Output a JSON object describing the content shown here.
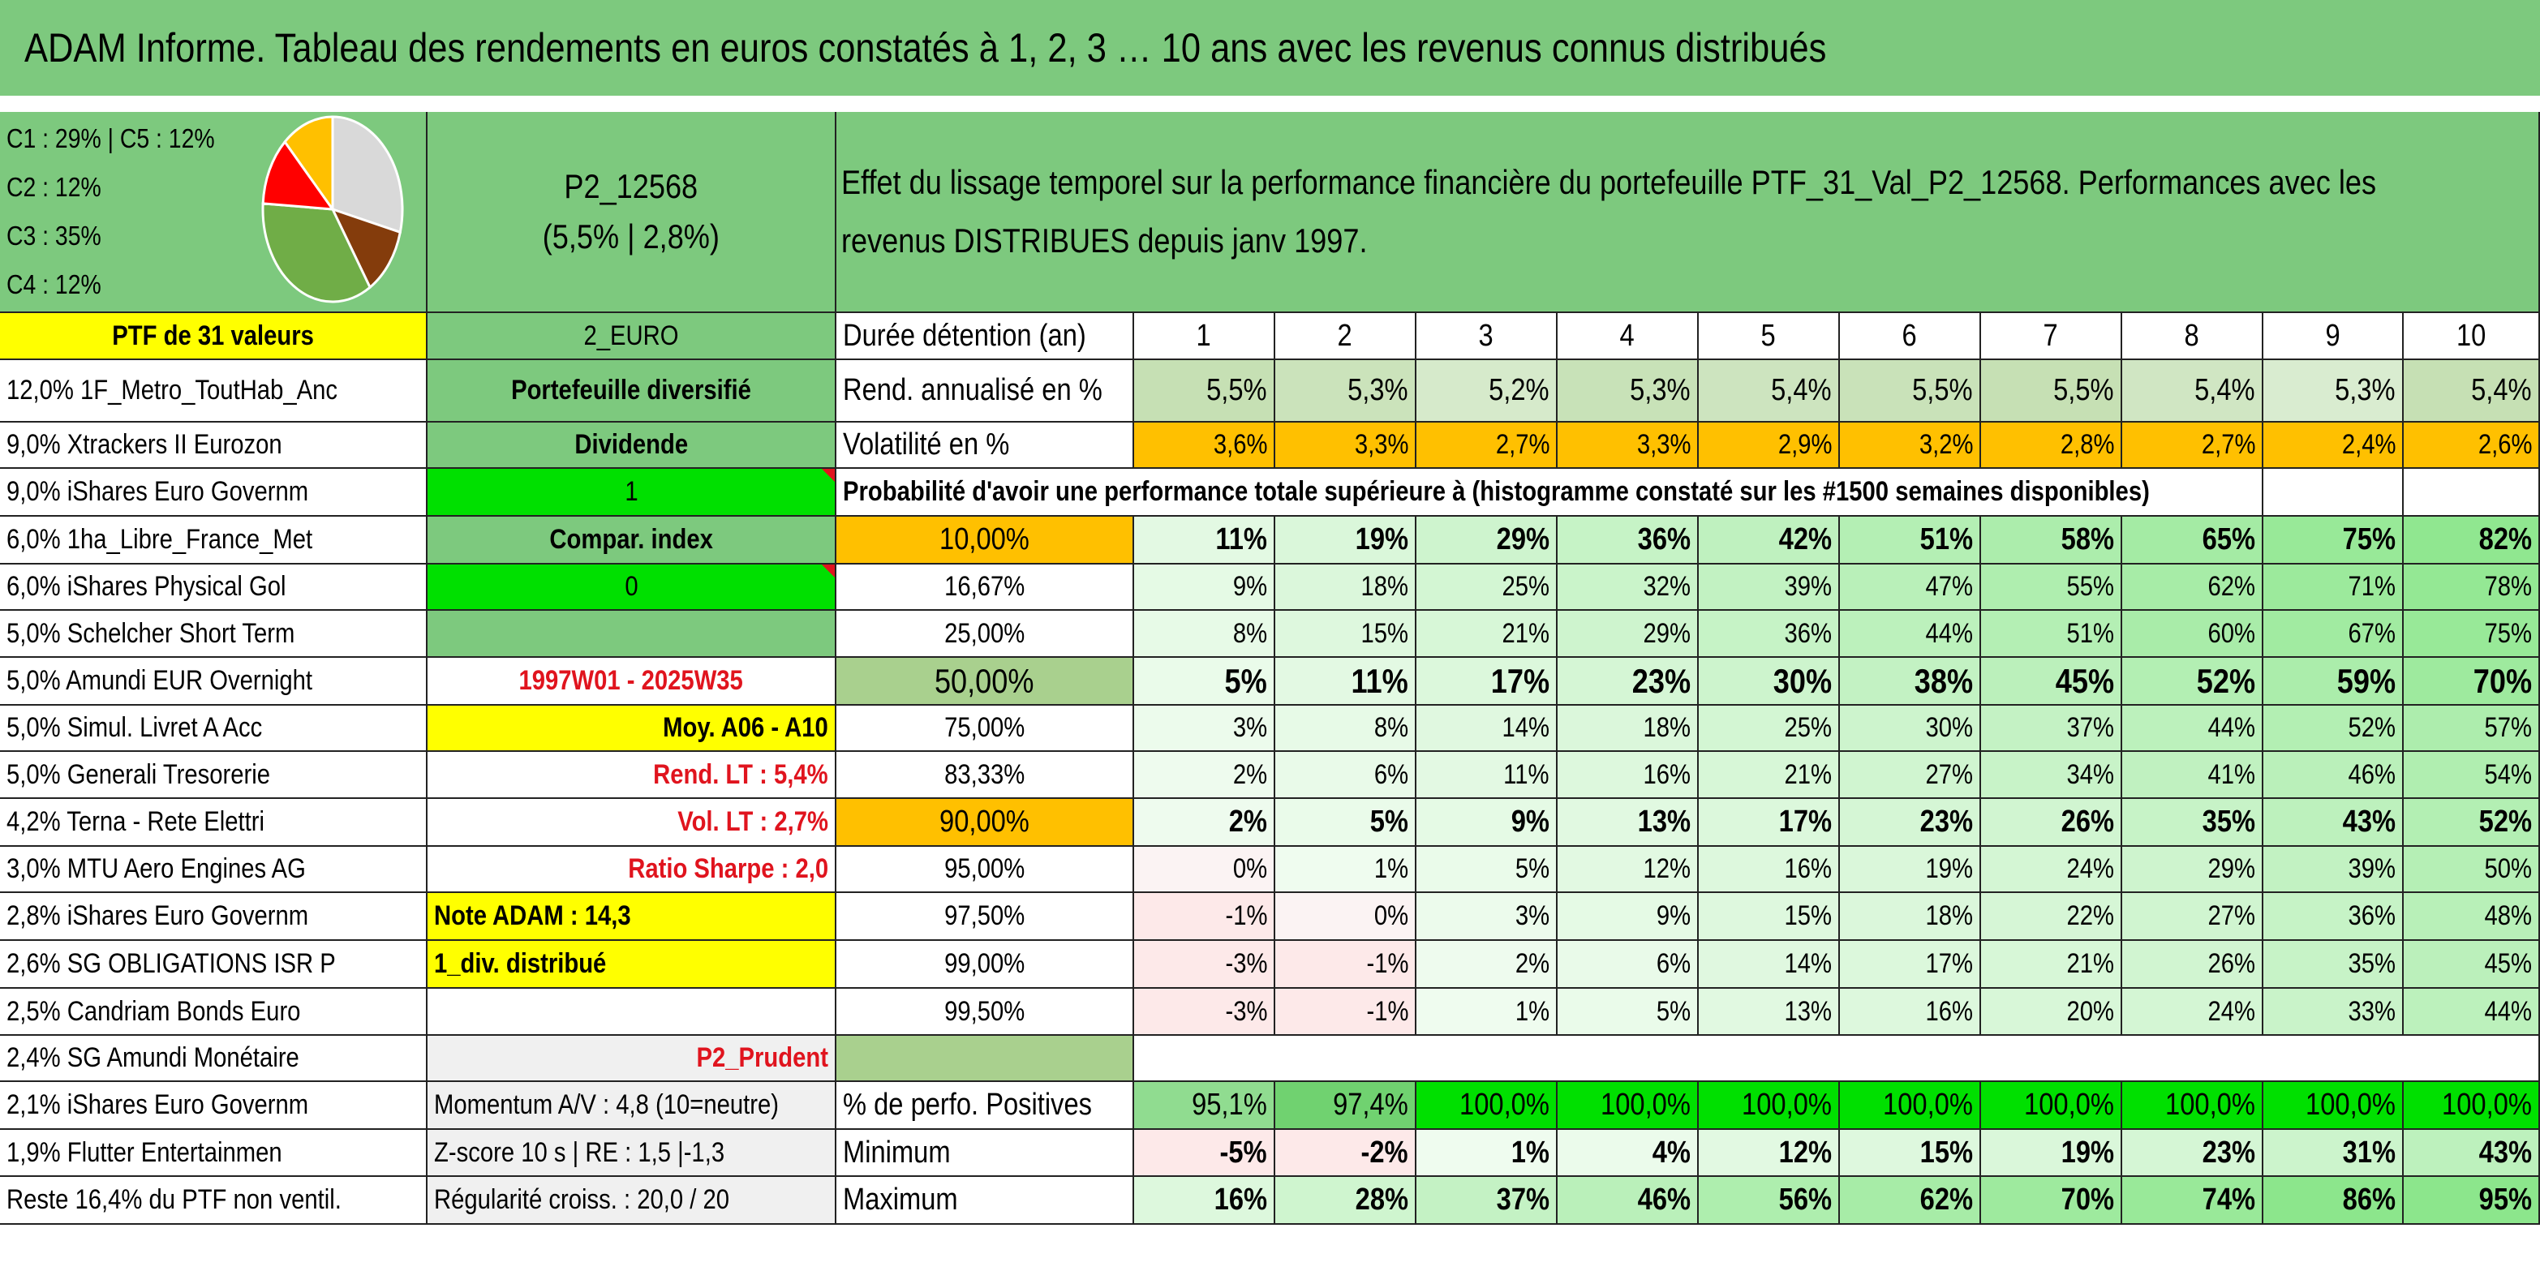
{
  "title": "ADAM Informe. Tableau des rendements en euros constatés à 1, 2, 3 … 10 ans avec les revenus connus distribués",
  "composition": {
    "lines": [
      "C1 : 29% | C5 : 12%",
      "C2 : 12%",
      "C3 : 35%",
      "C4 : 12%"
    ],
    "pie": [
      {
        "name": "C1",
        "pct": 29,
        "color": "#d9d9d9"
      },
      {
        "name": "C2",
        "pct": 12,
        "color": "#843c0c"
      },
      {
        "name": "C3",
        "pct": 35,
        "color": "#70ad47"
      },
      {
        "name": "C4",
        "pct": 12,
        "color": "#ff0000"
      },
      {
        "name": "C5",
        "pct": 12,
        "color": "#ffc000"
      }
    ]
  },
  "portfolio": {
    "code": "P2_12568",
    "stats": "(5,5% | 2,8%)"
  },
  "description_line1": "Effet du lissage temporel sur la performance financière du portefeuille PTF_31_Val_P2_12568. Performances avec les",
  "description_line2": "revenus DISTRIBUES depuis janv 1997.",
  "ptf_label": "PTF de 31 valeurs",
  "currency": "2_EURO",
  "holdings": [
    "12,0% 1F_Metro_ToutHab_Anc",
    "9,0% Xtrackers II Eurozon",
    "9,0% iShares Euro Governm",
    "6,0% 1ha_Libre_France_Met",
    "6,0% iShares Physical Gol",
    "5,0% Schelcher Short Term",
    "5,0% Amundi EUR Overnight",
    "5,0% Simul. Livret A Acc",
    "5,0% Generali Tresorerie",
    "4,2% Terna - Rete Elettri",
    "3,0% MTU Aero Engines AG",
    "2,8% iShares Euro Governm",
    "2,6% SG OBLIGATIONS ISR P",
    "2,5% Candriam Bonds Euro",
    "2,4% SG Amundi Monétaire",
    "2,1% iShares Euro Governm",
    "1,9% Flutter Entertainmen",
    "Reste 16,4% du PTF non ventil."
  ],
  "info": {
    "portefeuille": "Portefeuille diversifié",
    "dividende": "Dividende",
    "one": "1",
    "compar": "Compar. index",
    "zero": "0",
    "period": "1997W01 - 2025W35",
    "moy": "Moy. A06 - A10",
    "rend_lt": "Rend. LT : 5,4%",
    "vol_lt": "Vol. LT : 2,7%",
    "sharpe": "Ratio Sharpe : 2,0",
    "note": "Note ADAM : 14,3",
    "div": "1_div. distribué",
    "profile": "P2_Prudent",
    "momentum": "Momentum A/V : 4,8 (10=neutre)",
    "zscore": "Z-score 10 s | RE : 1,5 |-1,3",
    "regularite": "Régularité croiss. : 20,0 / 20"
  },
  "table": {
    "duree_label": "Durée détention (an)",
    "years": [
      "1",
      "2",
      "3",
      "4",
      "5",
      "6",
      "7",
      "8",
      "9",
      "10"
    ],
    "rend_label": "Rend. annualisé en %",
    "rend": [
      "5,5%",
      "5,3%",
      "5,2%",
      "5,3%",
      "5,4%",
      "5,5%",
      "5,5%",
      "5,4%",
      "5,3%",
      "5,4%"
    ],
    "vol_label": "Volatilité en %",
    "vol": [
      "3,6%",
      "3,3%",
      "2,7%",
      "3,3%",
      "2,9%",
      "3,2%",
      "2,8%",
      "2,7%",
      "2,4%",
      "2,6%"
    ],
    "prob_label": "Probabilité d'avoir une performance totale supérieure à (histogramme constaté sur les #1500 semaines disponibles)",
    "prob_rows": [
      {
        "pct": "10,00%",
        "vals": [
          "11%",
          "19%",
          "29%",
          "36%",
          "42%",
          "51%",
          "58%",
          "65%",
          "75%",
          "82%"
        ]
      },
      {
        "pct": "16,67%",
        "vals": [
          "9%",
          "18%",
          "25%",
          "32%",
          "39%",
          "47%",
          "55%",
          "62%",
          "71%",
          "78%"
        ]
      },
      {
        "pct": "25,00%",
        "vals": [
          "8%",
          "15%",
          "21%",
          "29%",
          "36%",
          "44%",
          "51%",
          "60%",
          "67%",
          "75%"
        ]
      },
      {
        "pct": "50,00%",
        "vals": [
          "5%",
          "11%",
          "17%",
          "23%",
          "30%",
          "38%",
          "45%",
          "52%",
          "59%",
          "70%"
        ]
      },
      {
        "pct": "75,00%",
        "vals": [
          "3%",
          "8%",
          "14%",
          "18%",
          "25%",
          "30%",
          "37%",
          "44%",
          "52%",
          "57%"
        ]
      },
      {
        "pct": "83,33%",
        "vals": [
          "2%",
          "6%",
          "11%",
          "16%",
          "21%",
          "27%",
          "34%",
          "41%",
          "46%",
          "54%"
        ]
      },
      {
        "pct": "90,00%",
        "vals": [
          "2%",
          "5%",
          "9%",
          "13%",
          "17%",
          "23%",
          "26%",
          "35%",
          "43%",
          "52%"
        ]
      },
      {
        "pct": "95,00%",
        "vals": [
          "0%",
          "1%",
          "5%",
          "12%",
          "16%",
          "19%",
          "24%",
          "29%",
          "39%",
          "50%"
        ]
      },
      {
        "pct": "97,50%",
        "vals": [
          "-1%",
          "0%",
          "3%",
          "9%",
          "15%",
          "18%",
          "22%",
          "27%",
          "36%",
          "48%"
        ]
      },
      {
        "pct": "99,00%",
        "vals": [
          "-3%",
          "-1%",
          "2%",
          "6%",
          "14%",
          "17%",
          "21%",
          "26%",
          "35%",
          "45%"
        ]
      },
      {
        "pct": "99,50%",
        "vals": [
          "-3%",
          "-1%",
          "1%",
          "5%",
          "13%",
          "16%",
          "20%",
          "24%",
          "33%",
          "44%"
        ]
      }
    ],
    "pos_label": "% de perfo. Positives",
    "pos": [
      "95,1%",
      "97,4%",
      "100,0%",
      "100,0%",
      "100,0%",
      "100,0%",
      "100,0%",
      "100,0%",
      "100,0%",
      "100,0%"
    ],
    "min_label": "Minimum",
    "min": [
      "-5%",
      "-2%",
      "1%",
      "4%",
      "12%",
      "15%",
      "19%",
      "23%",
      "31%",
      "43%"
    ],
    "max_label": "Maximum",
    "max": [
      "16%",
      "28%",
      "37%",
      "46%",
      "56%",
      "62%",
      "70%",
      "74%",
      "86%",
      "95%"
    ]
  }
}
